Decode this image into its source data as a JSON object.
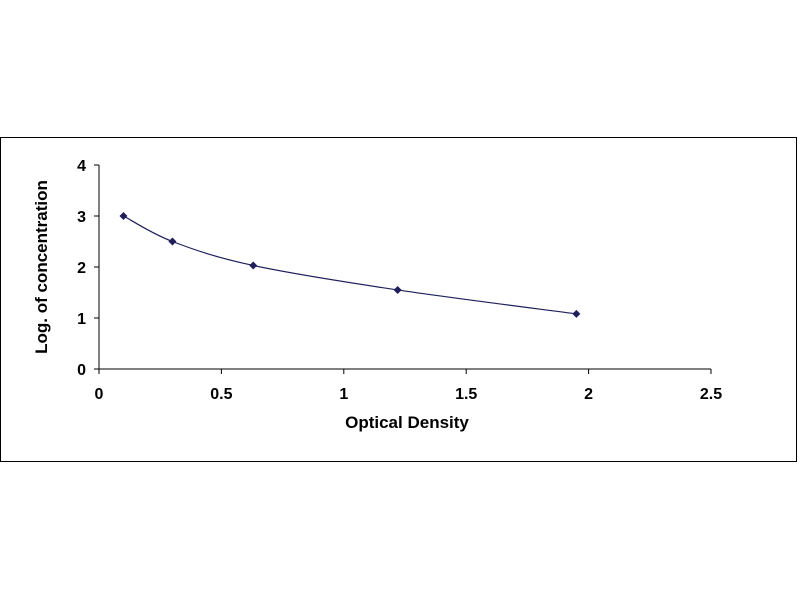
{
  "chart_data": {
    "type": "scatter",
    "title": "",
    "xlabel": "Optical Density",
    "ylabel": "Log. of concentration",
    "xlim": [
      0,
      2.5
    ],
    "ylim": [
      0,
      4
    ],
    "x_ticks": [
      "0",
      "0.5",
      "1",
      "1.5",
      "2",
      "2.5"
    ],
    "y_ticks": [
      "0",
      "1",
      "2",
      "3",
      "4"
    ],
    "grid": false,
    "legend": "none",
    "trendline": "smooth curve through points",
    "series": [
      {
        "x": [
          0.1,
          0.3,
          0.63,
          1.22,
          1.95
        ],
        "y": [
          3.0,
          2.5,
          2.03,
          1.55,
          1.08
        ]
      }
    ],
    "colors": {
      "marker": "#1f1f5c",
      "line": "#1f1f5c",
      "axis": "#000000"
    }
  }
}
